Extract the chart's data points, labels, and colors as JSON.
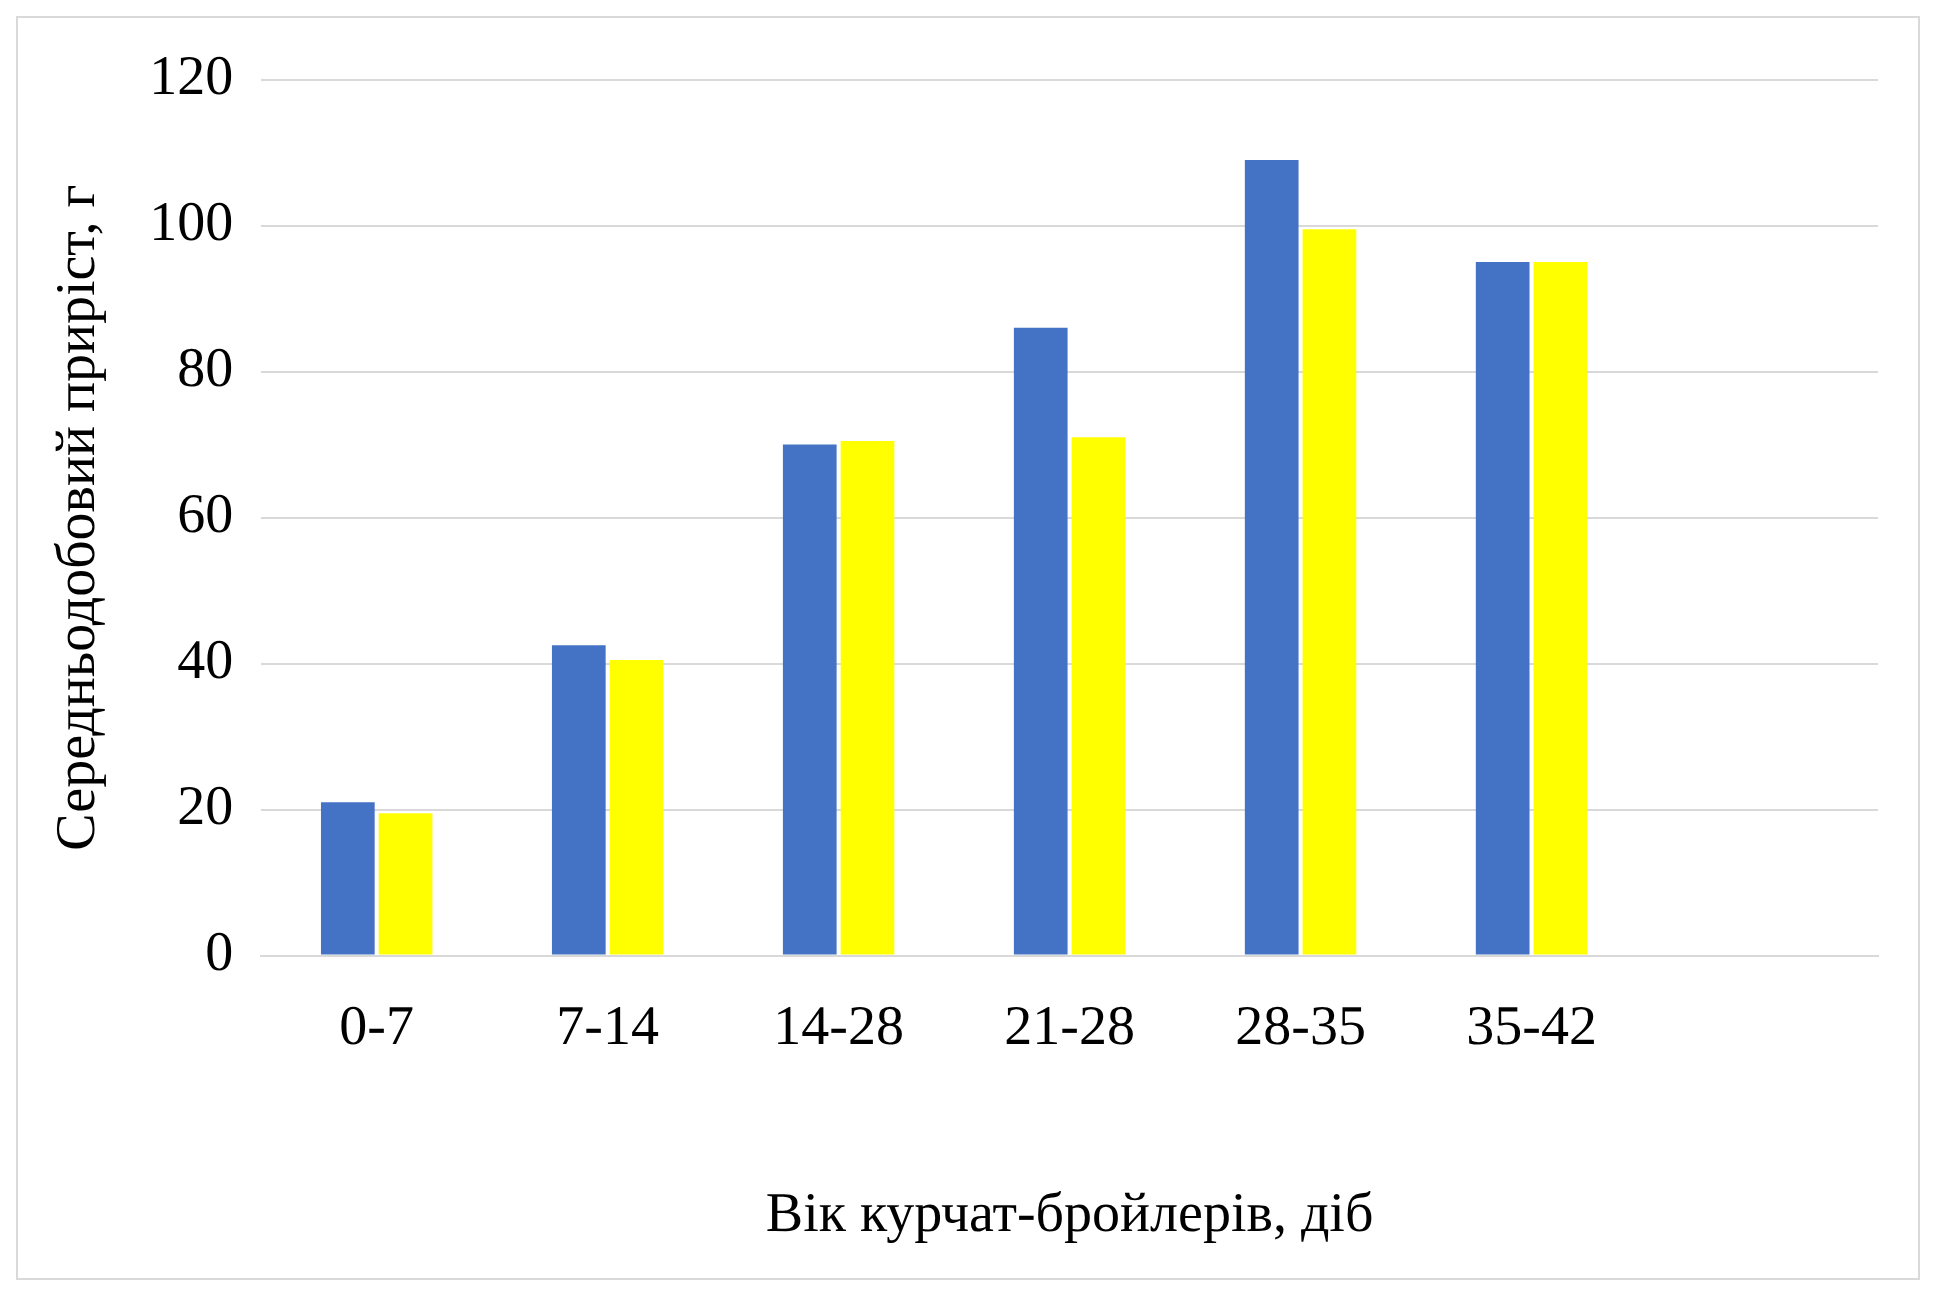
{
  "chart_data": {
    "type": "bar",
    "xlabel": "Вік курчат-бройлерів, діб",
    "ylabel": "Середньодобовий приріст, г",
    "categories": [
      "0-7",
      "7-14",
      "14-28",
      "21-28",
      "28-35",
      "35-42",
      null
    ],
    "series": [
      {
        "color": "#4472c4",
        "values": [
          21,
          42.5,
          70,
          86,
          109,
          95,
          null
        ]
      },
      {
        "color": "#ffff00",
        "values": [
          19.5,
          40.5,
          70.5,
          71,
          99.5,
          95,
          null
        ]
      }
    ],
    "ylim": [
      0,
      120
    ],
    "yticks": [
      0,
      20,
      40,
      60,
      80,
      100,
      120
    ],
    "grid": "y",
    "legend": false
  }
}
